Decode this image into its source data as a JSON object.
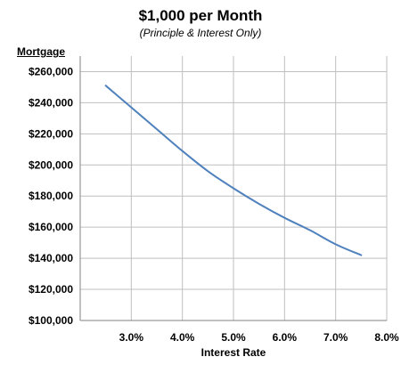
{
  "chart_data": {
    "type": "line",
    "title": "$1,000 per Month",
    "subtitle": "(Principle & Interest Only)",
    "xlabel": "Interest Rate",
    "ylabel": "Mortgage",
    "xlim": [
      2.0,
      8.0
    ],
    "ylim": [
      100000,
      270000
    ],
    "x_ticks": [
      3.0,
      4.0,
      5.0,
      6.0,
      7.0,
      8.0
    ],
    "x_tick_labels": [
      "3.0%",
      "4.0%",
      "5.0%",
      "6.0%",
      "7.0%",
      "8.0%"
    ],
    "y_ticks": [
      100000,
      120000,
      140000,
      160000,
      180000,
      200000,
      220000,
      240000,
      260000
    ],
    "y_tick_labels": [
      "$100,000",
      "$120,000",
      "$140,000",
      "$160,000",
      "$180,000",
      "$200,000",
      "$220,000",
      "$240,000",
      "$260,000"
    ],
    "grid": true,
    "legend": "none",
    "colors": {
      "line": "#4f81bd",
      "grid": "#bfbfbf",
      "axis": "#808080"
    },
    "series": [
      {
        "x": [
          2.5,
          3.0,
          3.5,
          4.0,
          4.5,
          5.0,
          5.5,
          6.0,
          6.5,
          7.0,
          7.5
        ],
        "values": [
          251000,
          237000,
          223000,
          209000,
          196000,
          185000,
          175000,
          166000,
          158000,
          149000,
          142000
        ]
      }
    ]
  }
}
